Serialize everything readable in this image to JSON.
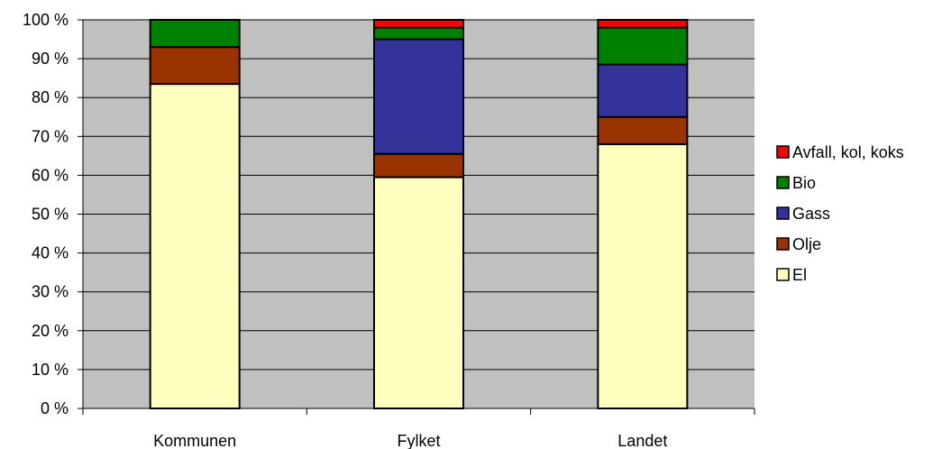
{
  "chart_data": {
    "type": "bar",
    "stacked": true,
    "percent_stacked": true,
    "categories": [
      "Kommunen",
      "Fylket",
      "Landet"
    ],
    "series": [
      {
        "name": "El",
        "color": "#ffffc0",
        "values": [
          83.5,
          59.5,
          68
        ]
      },
      {
        "name": "Olje",
        "color": "#993300",
        "values": [
          9.5,
          6,
          7
        ]
      },
      {
        "name": "Gass",
        "color": "#333399",
        "values": [
          0,
          29.5,
          13.5
        ]
      },
      {
        "name": "Bio",
        "color": "#008000",
        "values": [
          7,
          3,
          9.5
        ]
      },
      {
        "name": "Avfall, kol, koks",
        "color": "#ff0000",
        "values": [
          0,
          2,
          2
        ]
      }
    ],
    "ylim": [
      0,
      100
    ],
    "yticks": [
      "0 %",
      "10 %",
      "20 %",
      "30 %",
      "40 %",
      "50 %",
      "60 %",
      "70 %",
      "80 %",
      "90 %",
      "100 %"
    ],
    "grid": true,
    "plot_background": "#c0c0c0",
    "legend_position": "right",
    "legend_order": [
      "Avfall, kol, koks",
      "Bio",
      "Gass",
      "Olje",
      "El"
    ]
  }
}
